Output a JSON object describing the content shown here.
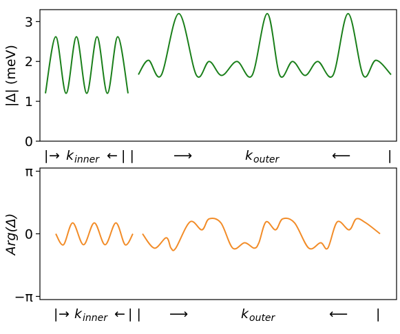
{
  "chart_data": [
    {
      "type": "line",
      "ylabel": "|Δ| (meV)",
      "ylim": [
        0,
        3.3
      ],
      "yticks": [
        "0",
        "1",
        "2",
        "3"
      ],
      "color": "#1a7f1a",
      "segments": [
        {
          "name": "inner",
          "x": [
            0.0,
            0.125,
            0.25,
            0.375,
            0.5,
            0.625,
            0.75,
            0.875,
            1.0
          ],
          "y": [
            1.2,
            2.62,
            1.2,
            2.62,
            1.2,
            2.62,
            1.2,
            2.62,
            1.2
          ]
        },
        {
          "name": "outer",
          "x": [
            0.0,
            0.04,
            0.09,
            0.16,
            0.23,
            0.28,
            0.33,
            0.39,
            0.45,
            0.51,
            0.56,
            0.61,
            0.66,
            0.71,
            0.77,
            0.83,
            0.89,
            0.94,
            1.0
          ],
          "y": [
            1.67,
            2.03,
            1.65,
            3.2,
            1.65,
            2.0,
            1.65,
            2.0,
            1.65,
            3.2,
            1.65,
            2.0,
            1.65,
            2.0,
            1.65,
            3.2,
            1.65,
            2.03,
            1.67
          ]
        }
      ]
    },
    {
      "type": "line",
      "ylabel": "Arg(Δ)",
      "ylim": [
        -3.3,
        3.3
      ],
      "yticks": [
        "π",
        "0",
        "−π"
      ],
      "color": "#f28c28",
      "segments": [
        {
          "name": "inner",
          "x": [
            0.0,
            0.1,
            0.22,
            0.36,
            0.5,
            0.64,
            0.78,
            0.9,
            1.0
          ],
          "y": [
            0.0,
            -0.55,
            0.55,
            -0.55,
            0.55,
            -0.55,
            0.55,
            -0.55,
            0.0
          ]
        },
        {
          "name": "outer",
          "x": [
            0.0,
            0.05,
            0.1,
            0.12,
            0.14,
            0.2,
            0.25,
            0.28,
            0.33,
            0.38,
            0.43,
            0.47,
            0.49,
            0.52,
            0.56,
            0.59,
            0.64,
            0.7,
            0.75,
            0.78,
            0.82,
            0.87,
            0.9,
            0.94,
            1.0
          ],
          "y": [
            0.0,
            -0.72,
            -0.2,
            -0.72,
            -0.72,
            0.6,
            0.2,
            0.75,
            0.55,
            -0.72,
            -0.45,
            -0.72,
            -0.45,
            0.6,
            0.2,
            0.75,
            0.55,
            -0.72,
            -0.45,
            -0.72,
            0.6,
            0.2,
            0.75,
            0.55,
            0.0
          ]
        }
      ]
    }
  ],
  "xaxis": {
    "left_bar": "|",
    "arrow_right": "→",
    "k_symbol": "k",
    "inner_sub": "inner",
    "arrow_left": "←",
    "sep": "| |",
    "outer_sub": "outer",
    "outer_arrow_right": "⟶",
    "outer_arrow_left": "⟵",
    "right_bar": "|"
  }
}
